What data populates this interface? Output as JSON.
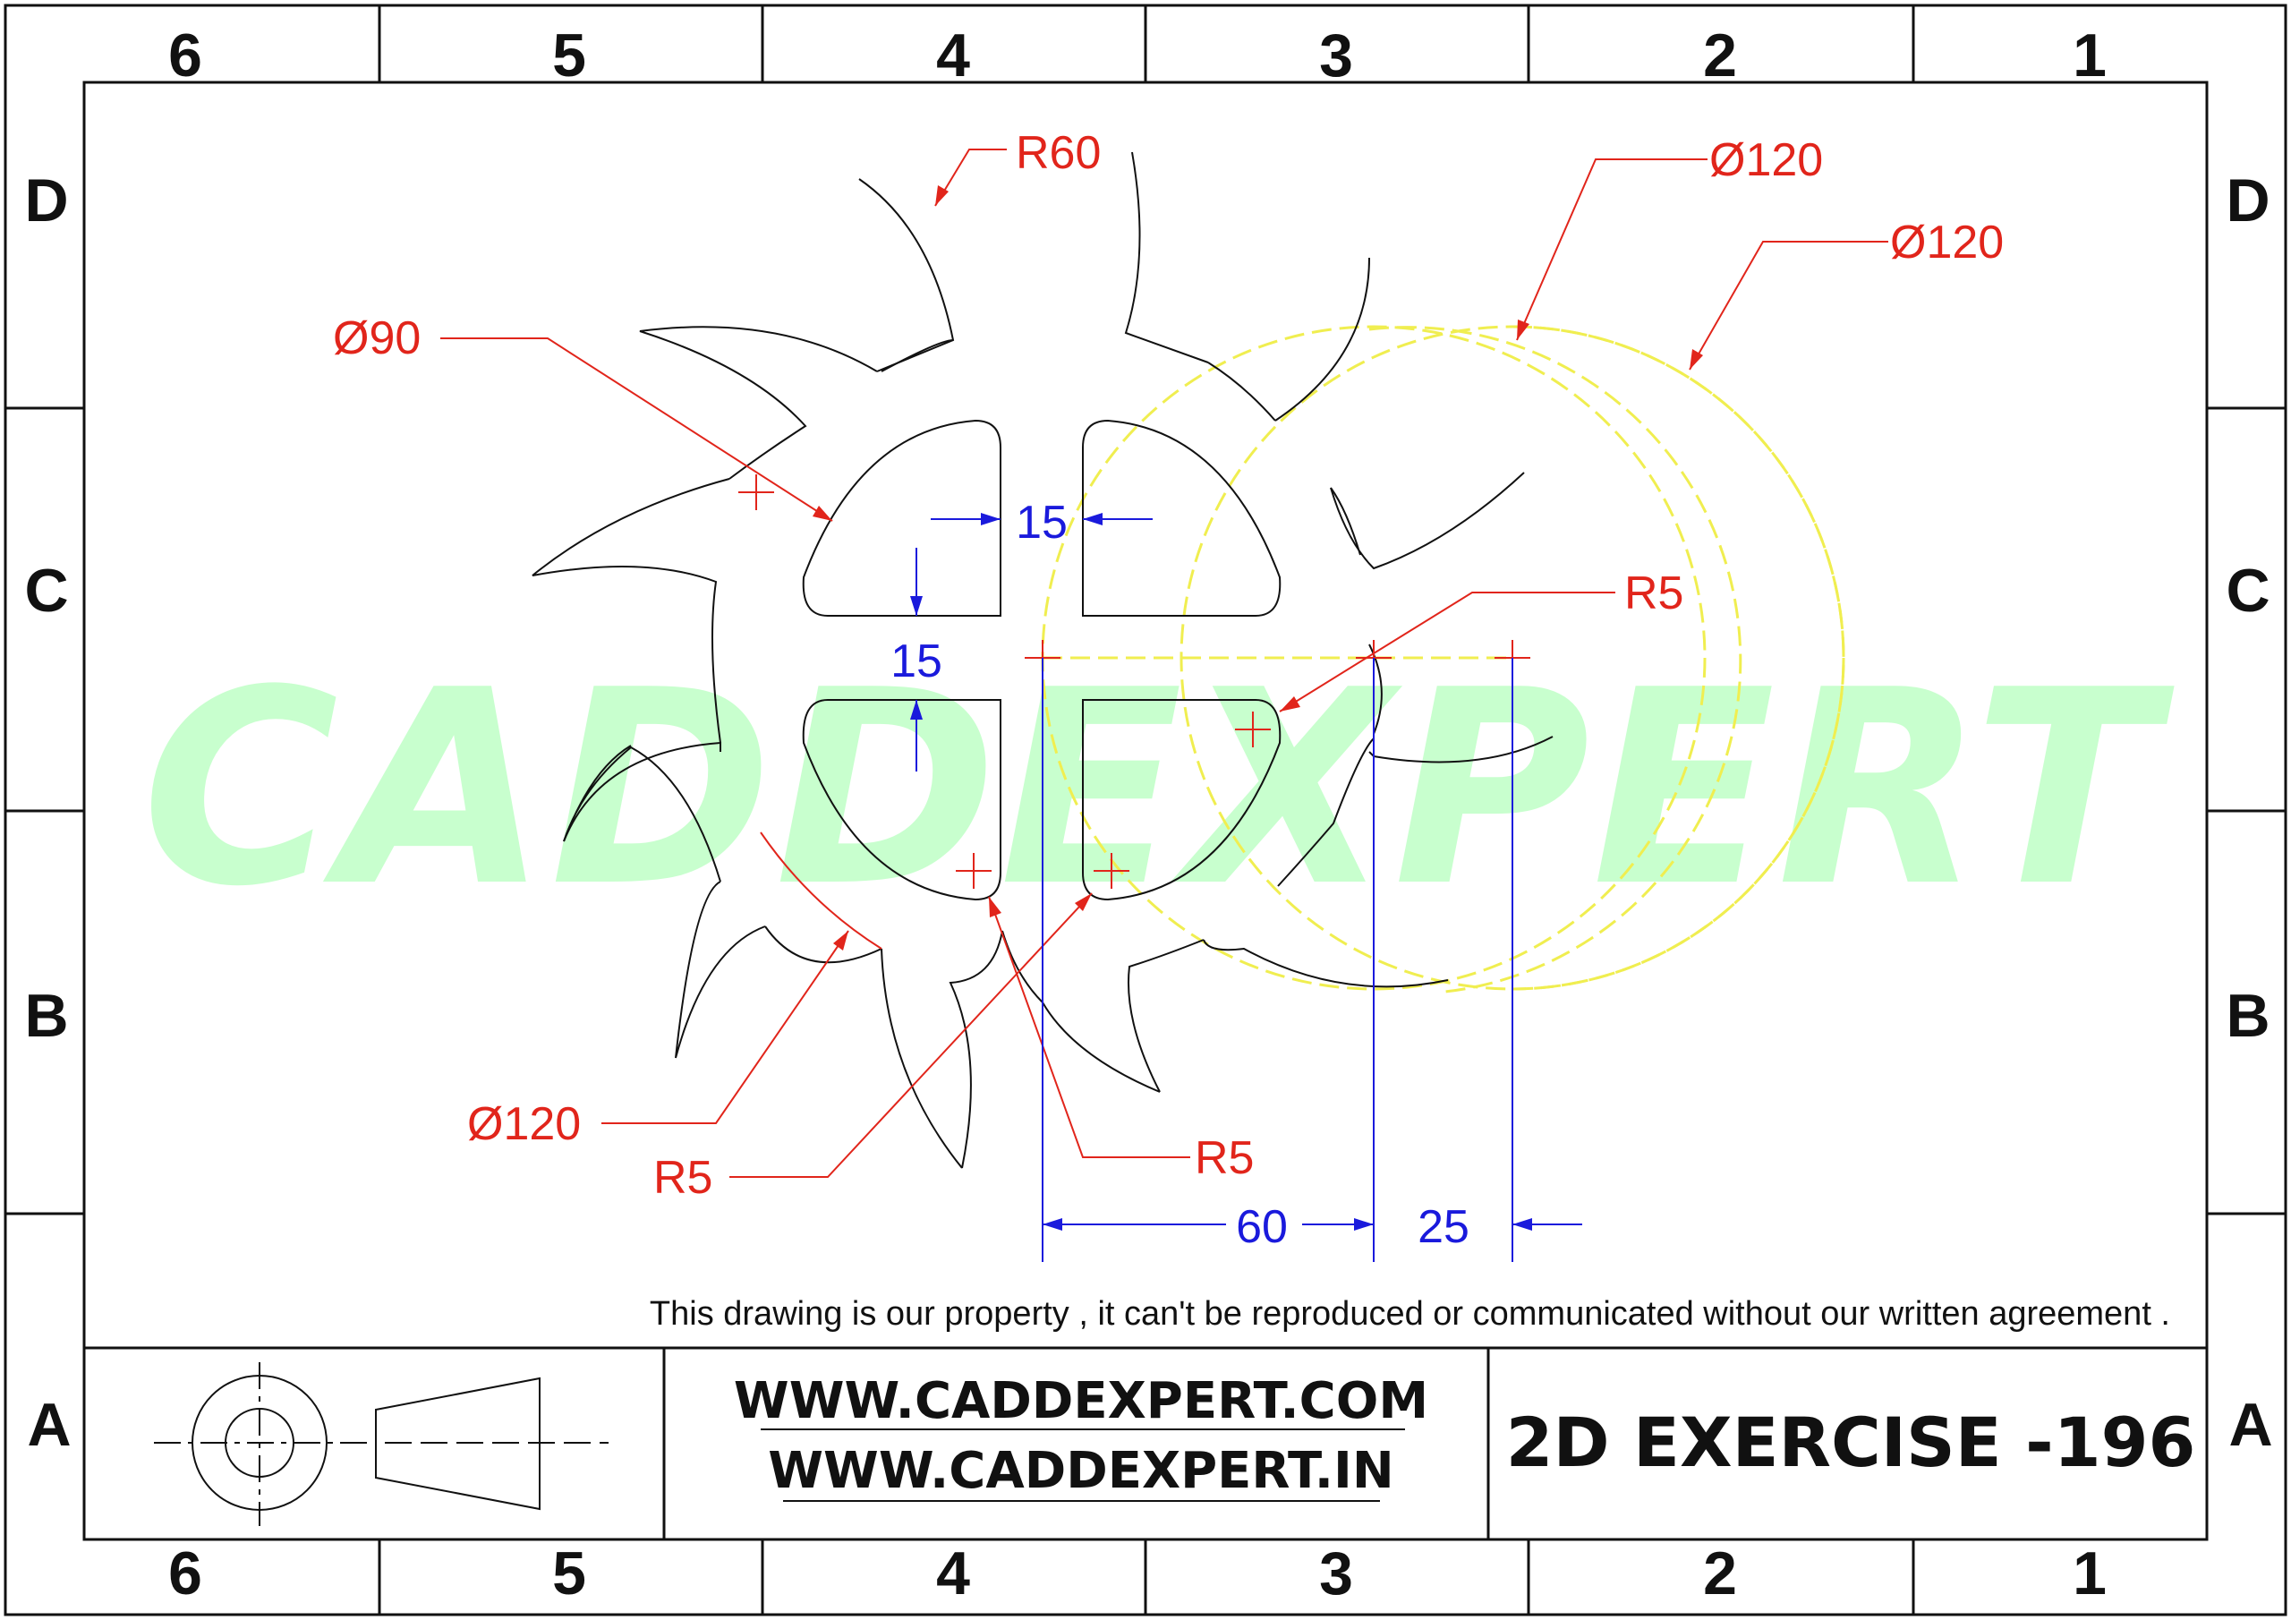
{
  "frame": {
    "column_labels": [
      "6",
      "5",
      "4",
      "3",
      "2",
      "1"
    ],
    "row_labels": [
      "D",
      "C",
      "B",
      "A"
    ]
  },
  "watermark": "CADDEXPERT",
  "dimensions": {
    "r60": "R60",
    "dia90": "Ø90",
    "dia120_top": "Ø120",
    "dia120_right": "Ø120",
    "dia120_left": "Ø120",
    "r5_right": "R5",
    "r5_left": "R5",
    "r5_bottom": "R5",
    "gap_h": "15",
    "gap_v": "15",
    "d60": "60",
    "d25": "25"
  },
  "notice": "This drawing is our property , it can't be reproduced or communicated without our written agreement .",
  "title_block": {
    "website1": "WWW.CADDEXPERT.COM",
    "website2": "WWW.CADDEXPERT.IN",
    "title": "2D EXERCISE -196"
  },
  "colors": {
    "dimension_red": "#e1251b",
    "dimension_blue": "#1a1adc",
    "construction_yellow": "#f0ee50",
    "watermark_green": "#7dff8a",
    "outline": "#111111"
  }
}
